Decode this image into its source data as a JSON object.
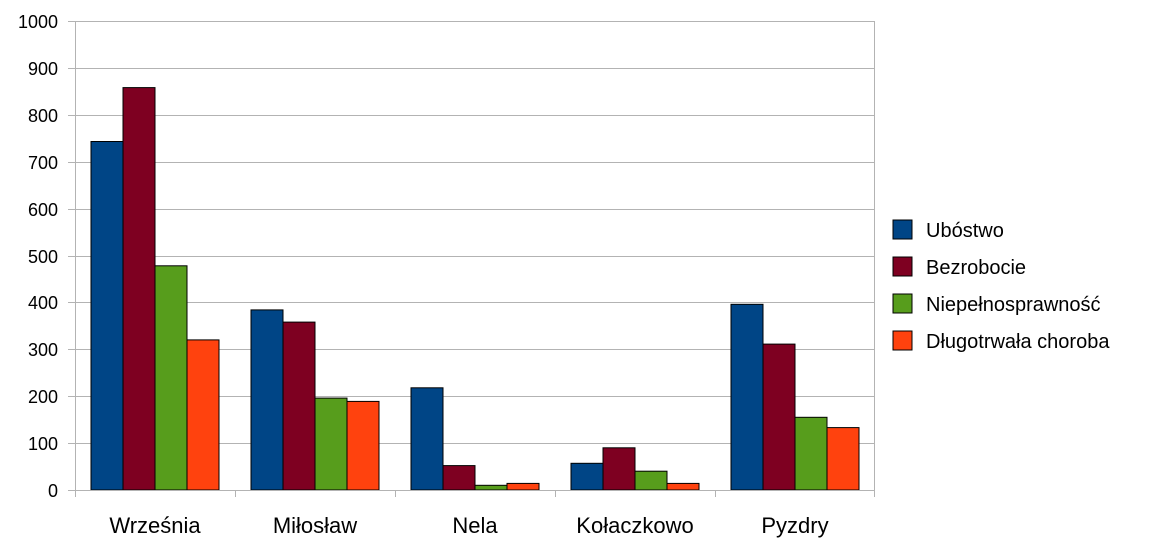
{
  "chart_data": {
    "type": "bar",
    "title": "",
    "xlabel": "",
    "ylabel": "",
    "categories": [
      "Września",
      "Miłosław",
      "Nela",
      "Kołaczkowo",
      "Pyzdry"
    ],
    "series": [
      {
        "name": "Ubóstwo",
        "color": "#004586",
        "values": [
          743,
          384,
          218,
          57,
          396
        ]
      },
      {
        "name": "Bezrobocie",
        "color": "#7e0021",
        "values": [
          858,
          358,
          52,
          90,
          311
        ]
      },
      {
        "name": "Niepełnosprawność",
        "color": "#579d1c",
        "values": [
          478,
          196,
          10,
          40,
          155
        ]
      },
      {
        "name": "Długotrwała choroba",
        "color": "#ff420e",
        "values": [
          320,
          189,
          14,
          14,
          133
        ]
      }
    ],
    "ylim": [
      0,
      1000
    ],
    "yticks": [
      0,
      100,
      200,
      300,
      400,
      500,
      600,
      700,
      800,
      900,
      1000
    ],
    "grid": true,
    "legend_position": "right",
    "grid_color": "#b3b3b3",
    "bar_edge_color": "#000000"
  }
}
